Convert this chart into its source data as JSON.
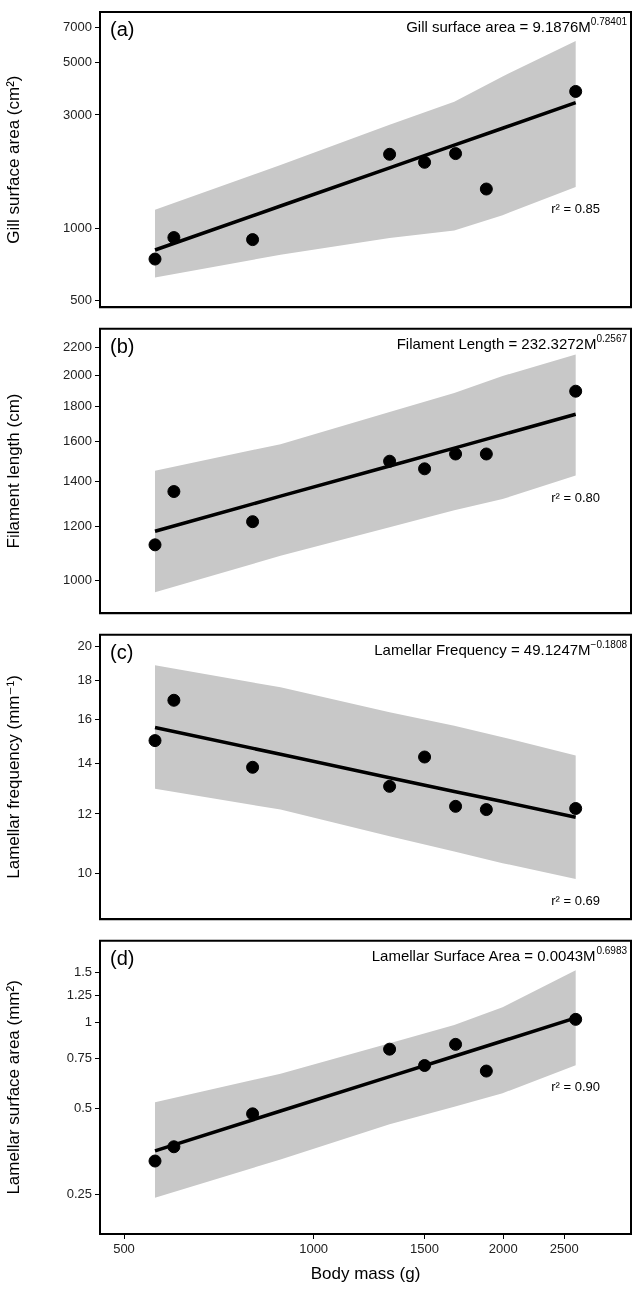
{
  "chart_data": [
    {
      "type": "scatter",
      "title": "(a)",
      "ylabel": "Gill surface area (cm²)",
      "annotations": [
        "Gill surface area = 9.1876M$^{0.78401}$",
        "r² = 0.85"
      ],
      "log": "xy",
      "tick_labels": "y",
      "xlim": [
        458,
        3190
      ],
      "ylim": [
        467,
        8120
      ],
      "yticks": [
        500,
        1000,
        3000,
        5000,
        7000
      ],
      "series": [
        {
          "type": "line",
          "marker": "none",
          "color": "#000000",
          "x": [
            560,
            886,
            1320,
            1672,
            1995,
            2606
          ],
          "values": [
            812,
            1243,
            1798,
            2239,
            2637,
            3379
          ],
          "lower": [
            623,
            775,
            912,
            980,
            1138,
            1494
          ],
          "upper": [
            1198,
            1849,
            2725,
            3410,
            4355,
            6140
          ]
        },
        {
          "marker": "circle",
          "color": "#000000",
          "x": [
            560,
            600,
            800,
            1320,
            1500,
            1680,
            1880,
            2606
          ],
          "values": [
            744,
            916,
            898,
            2050,
            1897,
            2064,
            1465,
            3765
          ]
        }
      ]
    },
    {
      "type": "scatter",
      "title": "(b)",
      "ylabel": "Filament length (cm)",
      "annotations": [
        "Filament Length = 232.3272M$^{0.2567}$",
        "r² = 0.80"
      ],
      "log": "xy",
      "tick_labels": "y",
      "xlim": [
        458,
        3190
      ],
      "ylim": [
        896,
        2344
      ],
      "yticks": [
        1000,
        1200,
        1400,
        1600,
        1800,
        2000,
        2200
      ],
      "series": [
        {
          "type": "line",
          "marker": "none",
          "color": "#000000",
          "x": [
            560,
            886,
            1320,
            1672,
            1995,
            2606
          ],
          "values": [
            1182,
            1331,
            1474,
            1566,
            1639,
            1756
          ],
          "lower": [
            962,
            1088,
            1198,
            1269,
            1318,
            1427
          ],
          "upper": [
            1451,
            1587,
            1769,
            1886,
            1998,
            2149
          ]
        },
        {
          "marker": "circle",
          "color": "#000000",
          "x": [
            560,
            600,
            800,
            1320,
            1500,
            1680,
            1880,
            2606
          ],
          "values": [
            1129,
            1352,
            1221,
            1498,
            1460,
            1535,
            1535,
            1898
          ]
        }
      ]
    },
    {
      "type": "scatter",
      "title": "(c)",
      "ylabel": "Lamellar frequency (mm⁻¹)",
      "annotations": [
        "Lamellar Frequency = 49.1247M$^{−0.1808}$",
        "r² = 0.69"
      ],
      "log": "xy",
      "tick_labels": "y",
      "xlim": [
        458,
        3190
      ],
      "ylim": [
        8.71,
        20.7
      ],
      "yticks": [
        10,
        12,
        14,
        16,
        18,
        20
      ],
      "series": [
        {
          "type": "line",
          "marker": "none",
          "color": "#000000",
          "x": [
            560,
            886,
            1320,
            1672,
            1995,
            2606
          ],
          "values": [
            15.61,
            14.39,
            13.4,
            12.85,
            12.46,
            11.88
          ],
          "lower": [
            12.96,
            12.16,
            11.21,
            10.7,
            10.33,
            9.84
          ],
          "upper": [
            18.87,
            17.64,
            16.35,
            15.7,
            15.16,
            14.34
          ]
        },
        {
          "marker": "circle",
          "color": "#000000",
          "x": [
            560,
            600,
            800,
            1320,
            1500,
            1680,
            1880,
            2606
          ],
          "values": [
            15.0,
            16.96,
            13.83,
            13.05,
            14.27,
            12.28,
            12.16,
            12.2
          ]
        }
      ]
    },
    {
      "type": "scatter",
      "title": "(d)",
      "xlabel": "Body mass (g)",
      "ylabel": "Lamellar surface area (mm²)",
      "annotations": [
        "Lamellar Surface Area = 0.0043M$^{0.6983}$",
        "r² = 0.90"
      ],
      "log": "xy",
      "xlim": [
        458,
        3190
      ],
      "xticks": [
        500,
        1000,
        1500,
        2000,
        2500
      ],
      "ylim": [
        0.182,
        1.94
      ],
      "yticks": [
        0.25,
        0.5,
        0.75,
        1,
        1.25,
        1.5
      ],
      "series": [
        {
          "type": "line",
          "marker": "none",
          "color": "#000000",
          "x": [
            560,
            886,
            1320,
            1672,
            1995,
            2606
          ],
          "values": [
            0.356,
            0.491,
            0.648,
            0.764,
            0.864,
            1.042
          ],
          "lower": [
            0.244,
            0.332,
            0.441,
            0.508,
            0.567,
            0.711
          ],
          "upper": [
            0.527,
            0.664,
            0.849,
            0.984,
            1.134,
            1.53
          ]
        },
        {
          "marker": "circle",
          "color": "#000000",
          "x": [
            560,
            600,
            800,
            1320,
            1500,
            1680,
            1880,
            2606
          ],
          "values": [
            0.328,
            0.368,
            0.48,
            0.809,
            0.709,
            0.841,
            0.678,
            1.029
          ]
        }
      ]
    }
  ]
}
